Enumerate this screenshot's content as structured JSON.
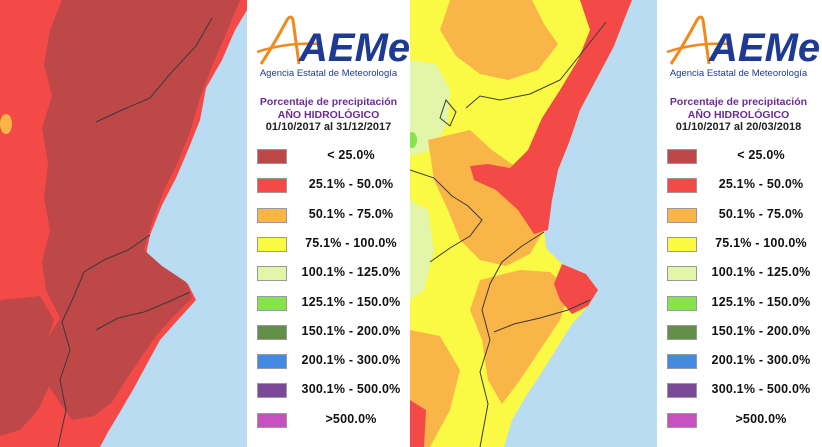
{
  "maps": [
    {
      "id": "left",
      "logo": {
        "brand": "AEMet",
        "agency": "Agencia Estatal de Meteorología"
      },
      "legend_title": [
        "Porcentaje de precipitación",
        "AÑO HIDROLÓGICO"
      ],
      "date_range": "01/10/2017 al 31/12/2017",
      "legend": [
        {
          "label": "< 25.0%",
          "color": "#be4747"
        },
        {
          "label": "25.1% - 50.0%",
          "color": "#f44a47"
        },
        {
          "label": "50.1% - 75.0%",
          "color": "#f9b548"
        },
        {
          "label": "75.1% - 100.0%",
          "color": "#fafa45"
        },
        {
          "label": "100.1% - 125.0%",
          "color": "#e3f5a8"
        },
        {
          "label": "125.1% - 150.0%",
          "color": "#86e34b"
        },
        {
          "label": "150.1% - 200.0%",
          "color": "#638f48"
        },
        {
          "label": "200.1% - 300.0%",
          "color": "#4589e2"
        },
        {
          "label": "300.1% - 500.0%",
          "color": "#7a4a99"
        },
        {
          "label": ">500.0%",
          "color": "#c751c0"
        }
      ]
    },
    {
      "id": "right",
      "logo": {
        "brand": "AEMet",
        "agency": "Agencia Estatal de Meteorología"
      },
      "legend_title": [
        "Porcentaje de precipitación",
        "AÑO HIDROLÓGICO"
      ],
      "date_range": "01/10/2017 al 20/03/2018",
      "legend": [
        {
          "label": "< 25.0%",
          "color": "#be4747"
        },
        {
          "label": "25.1% - 50.0%",
          "color": "#f44a47"
        },
        {
          "label": "50.1% - 75.0%",
          "color": "#f9b548"
        },
        {
          "label": "75.1% - 100.0%",
          "color": "#fafa45"
        },
        {
          "label": "100.1% - 125.0%",
          "color": "#e3f5a8"
        },
        {
          "label": "125.1% - 150.0%",
          "color": "#86e34b"
        },
        {
          "label": "150.1% - 200.0%",
          "color": "#638f48"
        },
        {
          "label": "200.1% - 300.0%",
          "color": "#4589e2"
        },
        {
          "label": "300.1% - 500.0%",
          "color": "#7a4a99"
        },
        {
          "label": ">500.0%",
          "color": "#c751c0"
        }
      ]
    }
  ],
  "colors": {
    "sea": "#b9dcf2",
    "border_line": "#3a3a3a",
    "brand_orange": "#f08a1c",
    "brand_blue": "#1f3a93",
    "title_purple": "#6a2c91"
  }
}
